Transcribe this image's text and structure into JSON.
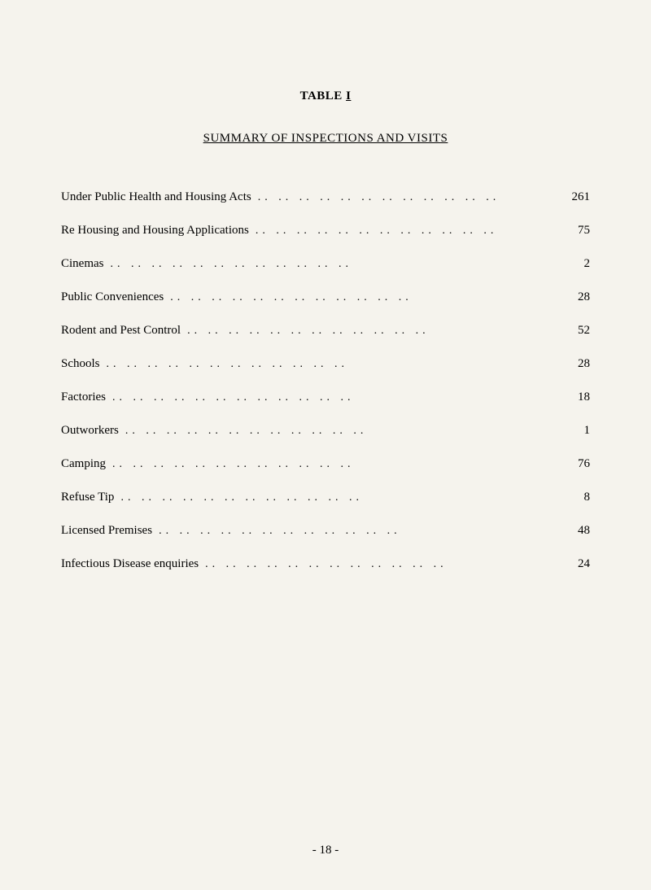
{
  "table_label": "TABLE",
  "table_number": "I",
  "section_title": "SUMMARY OF INSPECTIONS AND VISITS",
  "entries": [
    {
      "label": "Under Public Health and Housing Acts",
      "value": "261"
    },
    {
      "label": "Re Housing and Housing Applications",
      "value": "75"
    },
    {
      "label": "Cinemas",
      "value": "2"
    },
    {
      "label": "Public Conveniences",
      "value": "28"
    },
    {
      "label": "Rodent and Pest Control",
      "value": "52"
    },
    {
      "label": "Schools",
      "value": "28"
    },
    {
      "label": "Factories",
      "value": "18"
    },
    {
      "label": "Outworkers",
      "value": "1"
    },
    {
      "label": "Camping",
      "value": "76"
    },
    {
      "label": "Refuse Tip",
      "value": "8"
    },
    {
      "label": "Licensed Premises",
      "value": "48"
    },
    {
      "label": "Infectious Disease enquiries",
      "value": "24"
    }
  ],
  "page_number": "- 18 -",
  "dot_leader": ".. .. .. .. .. .. .. .. .. .. .. .."
}
